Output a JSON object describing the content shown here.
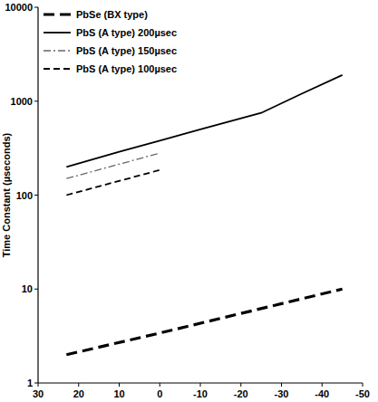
{
  "chart_data": {
    "type": "line",
    "y_label": "Time Constant (µseconds)",
    "log": "y",
    "grid": false,
    "legend": "top-left",
    "xlim": [
      30,
      -50
    ],
    "xticks": [
      30,
      20,
      10,
      0,
      -10,
      -20,
      -30,
      -40,
      -50
    ],
    "ylim": [
      1,
      10000
    ],
    "yticks": [
      1,
      10,
      100,
      1000,
      10000
    ],
    "series": [
      {
        "name": "PbSe (BX type)",
        "color": "#000000",
        "line_style": "long-dashed",
        "x": [
          23,
          0,
          -20,
          -45
        ],
        "values": [
          2,
          3.4,
          5.5,
          10
        ]
      },
      {
        "name": "PbS (A type) 200µsec",
        "color": "#000000",
        "line_style": "solid",
        "x": [
          23,
          10,
          0,
          -10,
          -25,
          -35,
          -45
        ],
        "values": [
          200,
          290,
          380,
          500,
          750,
          1200,
          1900
        ]
      },
      {
        "name": "PbS (A type) 150µsec",
        "color": "#666666",
        "line_style": "dashdot",
        "x": [
          23,
          0
        ],
        "values": [
          150,
          280
        ]
      },
      {
        "name": "PbS (A type) 100µsec",
        "color": "#000000",
        "line_style": "dashed",
        "x": [
          23,
          0
        ],
        "values": [
          100,
          185
        ]
      }
    ]
  }
}
